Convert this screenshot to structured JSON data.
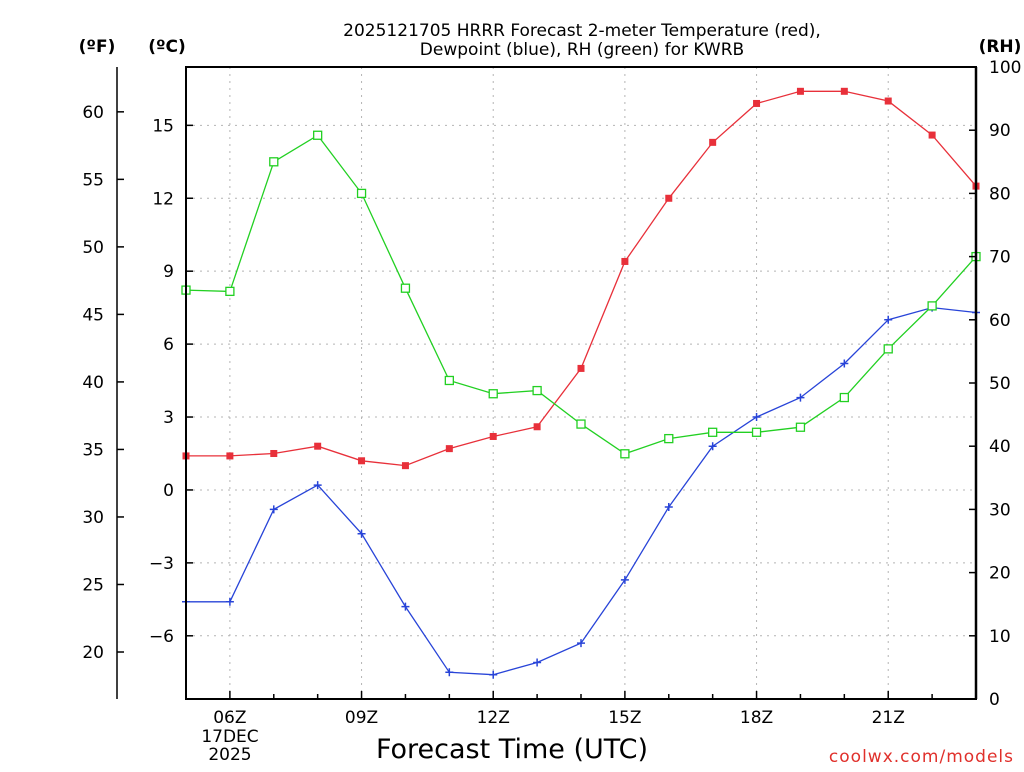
{
  "chart_data": {
    "type": "line",
    "title_line1": "2025121705 HRRR Forecast 2-meter Temperature (red),",
    "title_line2": "Dewpoint (blue), RH (green) for KWRB",
    "xlabel": "Forecast Time (UTC)",
    "credit": "coolwx.com/models",
    "date_line1": "17DEC",
    "date_line2": "2025",
    "unit_f": "(ºF)",
    "unit_c": "(ºC)",
    "unit_rh": "(RH)",
    "hours": [
      5,
      6,
      7,
      8,
      9,
      10,
      11,
      12,
      13,
      14,
      15,
      16,
      17,
      18,
      19,
      20,
      21,
      22,
      23
    ],
    "x_ticks": [
      {
        "hour": 6,
        "label": "06Z"
      },
      {
        "hour": 9,
        "label": "09Z"
      },
      {
        "hour": 12,
        "label": "12Z"
      },
      {
        "hour": 15,
        "label": "15Z"
      },
      {
        "hour": 18,
        "label": "18Z"
      },
      {
        "hour": 21,
        "label": "21Z"
      }
    ],
    "xlim": [
      5,
      23
    ],
    "ylim_c": [
      -8.6,
      17.4
    ],
    "ylim_rh": [
      0,
      100
    ],
    "c_ticks": [
      {
        "v": -6,
        "label": "−6"
      },
      {
        "v": -3,
        "label": "−3"
      },
      {
        "v": 0,
        "label": "0"
      },
      {
        "v": 3,
        "label": "3"
      },
      {
        "v": 6,
        "label": "6"
      },
      {
        "v": 9,
        "label": "9"
      },
      {
        "v": 12,
        "label": "12"
      },
      {
        "v": 15,
        "label": "15"
      }
    ],
    "f_ticks": [
      {
        "v": 20,
        "label": "20"
      },
      {
        "v": 25,
        "label": "25"
      },
      {
        "v": 30,
        "label": "30"
      },
      {
        "v": 35,
        "label": "35"
      },
      {
        "v": 40,
        "label": "40"
      },
      {
        "v": 45,
        "label": "45"
      },
      {
        "v": 50,
        "label": "50"
      },
      {
        "v": 55,
        "label": "55"
      },
      {
        "v": 60,
        "label": "60"
      }
    ],
    "rh_ticks": [
      {
        "v": 0,
        "label": "0"
      },
      {
        "v": 10,
        "label": "10"
      },
      {
        "v": 20,
        "label": "20"
      },
      {
        "v": 30,
        "label": "30"
      },
      {
        "v": 40,
        "label": "40"
      },
      {
        "v": 50,
        "label": "50"
      },
      {
        "v": 60,
        "label": "60"
      },
      {
        "v": 70,
        "label": "70"
      },
      {
        "v": 80,
        "label": "80"
      },
      {
        "v": 90,
        "label": "90"
      },
      {
        "v": 100,
        "label": "100"
      }
    ],
    "series": [
      {
        "name": "Temperature",
        "axis": "c",
        "color": "#e8303a",
        "marker": "filled-square",
        "values": [
          1.4,
          1.4,
          1.5,
          1.8,
          1.2,
          1.0,
          1.7,
          2.2,
          2.6,
          5.0,
          9.4,
          12.0,
          14.3,
          15.9,
          16.4,
          16.4,
          16.0,
          14.6,
          12.5
        ]
      },
      {
        "name": "Dewpoint",
        "axis": "c",
        "color": "#2844d8",
        "marker": "plus",
        "values": [
          -4.6,
          -4.6,
          -0.8,
          0.2,
          -1.8,
          -4.8,
          -7.5,
          -7.6,
          -7.1,
          -6.3,
          -3.7,
          -0.7,
          1.8,
          3.0,
          3.8,
          5.2,
          7.0,
          7.5,
          7.3
        ]
      },
      {
        "name": "RH",
        "axis": "rh",
        "color": "#22d022",
        "marker": "open-square",
        "values": [
          64.7,
          64.5,
          85.0,
          89.2,
          80.0,
          65.0,
          50.4,
          48.3,
          48.8,
          43.5,
          38.8,
          41.2,
          42.2,
          42.2,
          43.0,
          47.7,
          55.4,
          62.2,
          70.0
        ]
      }
    ]
  }
}
